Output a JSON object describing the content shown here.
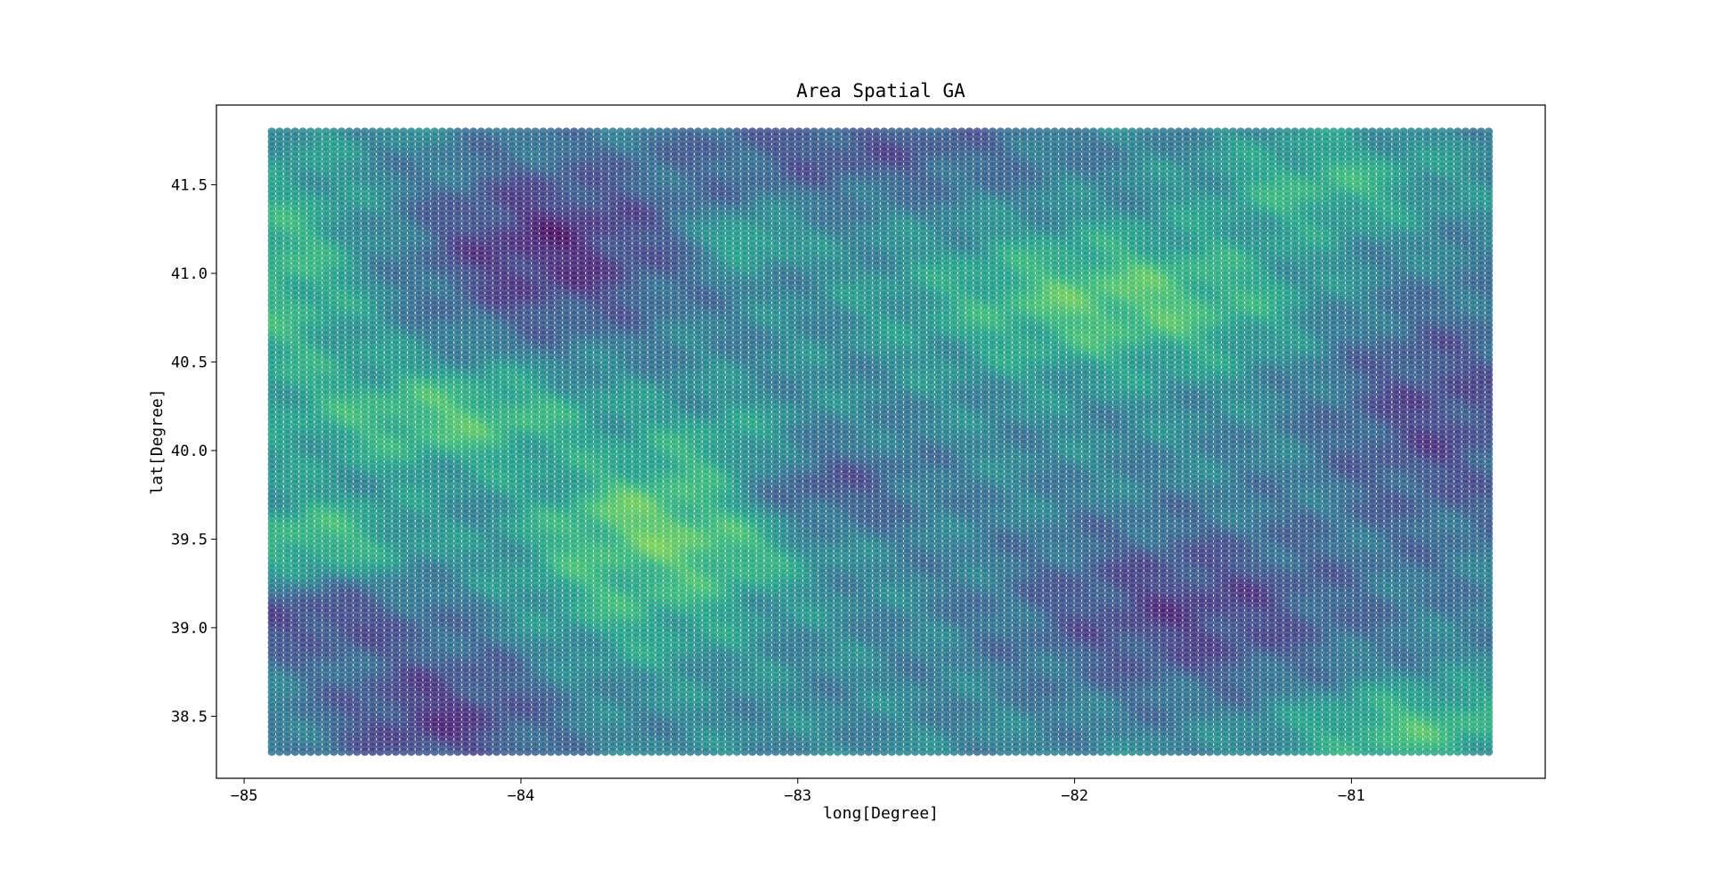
{
  "chart_data": {
    "type": "scatter",
    "title": "Area Spatial GA",
    "xlabel": "long[Degree]",
    "ylabel": "lat[Degree]",
    "xlim": [
      -85.1,
      -80.3
    ],
    "ylim": [
      38.15,
      41.95
    ],
    "data_extent": {
      "x": [
        -84.9,
        -80.5
      ],
      "y": [
        38.3,
        41.8
      ]
    },
    "xticks": [
      {
        "value": -85,
        "label": "−85"
      },
      {
        "value": -84,
        "label": "−84"
      },
      {
        "value": -83,
        "label": "−83"
      },
      {
        "value": -82,
        "label": "−82"
      },
      {
        "value": -81,
        "label": "−81"
      }
    ],
    "yticks": [
      {
        "value": 38.5,
        "label": "38.5"
      },
      {
        "value": 39.0,
        "label": "39.0"
      },
      {
        "value": 39.5,
        "label": "39.5"
      },
      {
        "value": 40.0,
        "label": "40.0"
      },
      {
        "value": 40.5,
        "label": "40.5"
      },
      {
        "value": 41.0,
        "label": "41.0"
      },
      {
        "value": 41.5,
        "label": "41.5"
      }
    ],
    "colormap": "viridis",
    "color_value_range": [
      0,
      1
    ],
    "background_level": 0.42,
    "features": [
      {
        "kind": "high",
        "x": -83.45,
        "y": 39.55,
        "level": 1.0,
        "sx": 0.28,
        "sy": 0.22
      },
      {
        "kind": "high",
        "x": -83.25,
        "y": 39.85,
        "level": 0.72,
        "sx": 0.22,
        "sy": 0.25
      },
      {
        "kind": "high",
        "x": -83.6,
        "y": 39.25,
        "level": 0.65,
        "sx": 0.3,
        "sy": 0.35
      },
      {
        "kind": "high",
        "x": -84.25,
        "y": 40.2,
        "level": 0.74,
        "sx": 0.4,
        "sy": 0.22
      },
      {
        "kind": "high",
        "x": -84.75,
        "y": 39.5,
        "level": 0.7,
        "sx": 0.25,
        "sy": 0.18
      },
      {
        "kind": "high",
        "x": -84.85,
        "y": 41.0,
        "level": 0.68,
        "sx": 0.25,
        "sy": 0.5
      },
      {
        "kind": "high",
        "x": -83.2,
        "y": 41.2,
        "level": 0.72,
        "sx": 0.12,
        "sy": 0.1
      },
      {
        "kind": "high",
        "x": -81.85,
        "y": 40.85,
        "level": 0.76,
        "sx": 0.5,
        "sy": 0.28
      },
      {
        "kind": "high",
        "x": -81.1,
        "y": 41.5,
        "level": 0.66,
        "sx": 0.3,
        "sy": 0.2
      },
      {
        "kind": "high",
        "x": -80.8,
        "y": 38.45,
        "level": 0.72,
        "sx": 0.35,
        "sy": 0.18
      },
      {
        "kind": "low",
        "x": -83.9,
        "y": 41.15,
        "level": 0.05,
        "sx": 0.35,
        "sy": 0.35
      },
      {
        "kind": "low",
        "x": -82.8,
        "y": 41.7,
        "level": 0.2,
        "sx": 0.5,
        "sy": 0.2
      },
      {
        "kind": "low",
        "x": -84.3,
        "y": 38.5,
        "level": 0.1,
        "sx": 0.3,
        "sy": 0.3
      },
      {
        "kind": "low",
        "x": -84.75,
        "y": 39.05,
        "level": 0.15,
        "sx": 0.3,
        "sy": 0.15
      },
      {
        "kind": "low",
        "x": -81.6,
        "y": 39.1,
        "level": 0.12,
        "sx": 0.45,
        "sy": 0.35
      },
      {
        "kind": "low",
        "x": -80.7,
        "y": 40.2,
        "level": 0.15,
        "sx": 0.3,
        "sy": 0.5
      },
      {
        "kind": "low",
        "x": -82.9,
        "y": 39.8,
        "level": 0.2,
        "sx": 0.25,
        "sy": 0.2
      }
    ]
  }
}
